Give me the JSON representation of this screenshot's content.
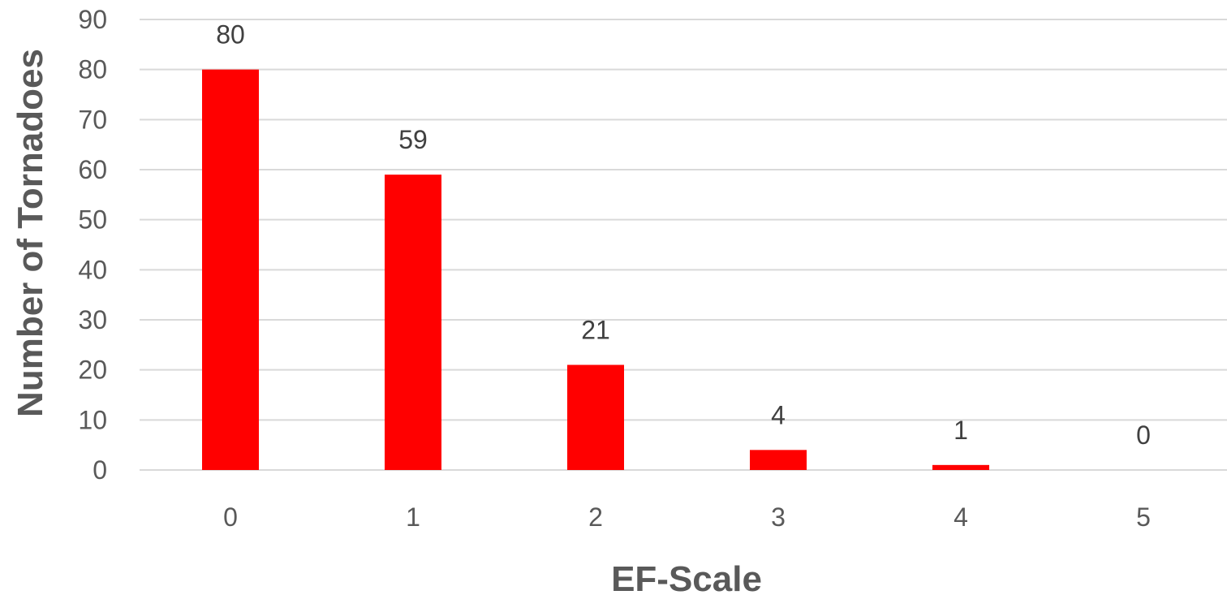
{
  "chart_data": {
    "type": "bar",
    "title": "",
    "xlabel": "EF-Scale",
    "ylabel": "Number of Tornadoes",
    "categories": [
      "0",
      "1",
      "2",
      "3",
      "4",
      "5"
    ],
    "values": [
      80,
      59,
      21,
      4,
      1,
      0
    ],
    "data_labels": [
      "80",
      "59",
      "21",
      "4",
      "1",
      "0"
    ],
    "ylim": [
      0,
      90
    ],
    "yticks": [
      0,
      10,
      20,
      30,
      40,
      50,
      60,
      70,
      80,
      90
    ],
    "ytick_labels": [
      "0",
      "10",
      "20",
      "30",
      "40",
      "50",
      "60",
      "70",
      "80",
      "90"
    ],
    "grid": true,
    "legend": "none",
    "bar_color": "#ff0000",
    "grid_color": "#d9d9d9",
    "text_color": "#595959"
  }
}
